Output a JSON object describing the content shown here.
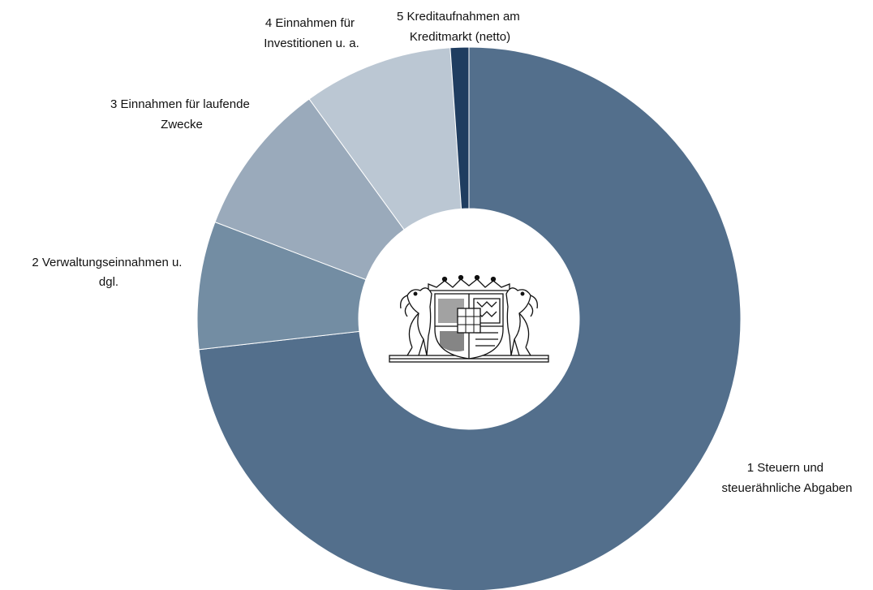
{
  "chart_data": {
    "type": "pie",
    "variant": "donut",
    "start": "12 o'clock",
    "direction": "clockwise",
    "legend": "none",
    "center_image": "coat-of-arms-of-bavaria",
    "slices": [
      {
        "label": "1 Steuern und steuerähnliche Abgaben",
        "lines": [
          "1 Steuern und",
          "steuerähnliche Abgaben"
        ],
        "value": 73.2,
        "color": "#536f8c"
      },
      {
        "label": "2 Verwaltungseinnahmen u. dgl.",
        "lines": [
          "2 Verwaltungseinnahmen u.",
          "dgl."
        ],
        "value": 7.6,
        "color": "#738da3"
      },
      {
        "label": "3 Einnahmen für laufende Zwecke",
        "lines": [
          "3 Einnahmen für laufende",
          "Zwecke"
        ],
        "value": 9.2,
        "color": "#9aaabb"
      },
      {
        "label": "4 Einnahmen für Investitionen u. a.",
        "lines": [
          "4 Einnahmen für",
          "Investitionen u. a."
        ],
        "value": 8.9,
        "color": "#bbc7d3"
      },
      {
        "label": "5 Kreditaufnahmen am Kreditmarkt (netto)",
        "lines": [
          "5 Kreditaufnahmen am",
          "Kreditmarkt (netto)"
        ],
        "value": 1.1,
        "color": "#1f3d60"
      }
    ]
  }
}
